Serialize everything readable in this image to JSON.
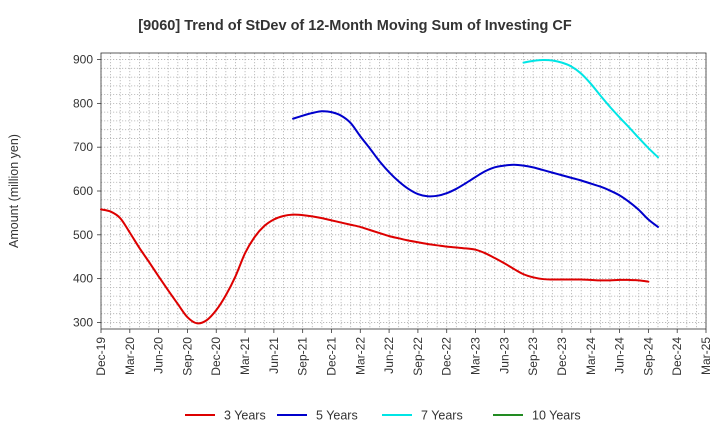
{
  "chart_data": {
    "type": "line",
    "title": "[9060]  Trend of StDev of 12-Month Moving Sum of Investing CF",
    "ylabel": "Amount (million yen)",
    "xlabel": "",
    "ylim": [
      285,
      915
    ],
    "yticks": [
      300,
      400,
      500,
      600,
      700,
      800,
      900
    ],
    "xrange": [
      "Dec-19",
      "Mar-25"
    ],
    "xtick_labels": [
      "Dec-19",
      "Mar-20",
      "Jun-20",
      "Sep-20",
      "Dec-20",
      "Mar-21",
      "Jun-21",
      "Sep-21",
      "Dec-21",
      "Mar-22",
      "Jun-22",
      "Sep-22",
      "Dec-22",
      "Mar-23",
      "Jun-23",
      "Sep-23",
      "Dec-23",
      "Mar-24",
      "Jun-24",
      "Sep-24",
      "Dec-24",
      "Mar-25"
    ],
    "grid": true,
    "legend_position": "bottom",
    "series": [
      {
        "name": "3 Years",
        "color": "#dd0000",
        "points": [
          [
            "Dec-19",
            558
          ],
          [
            "Jan-20",
            553
          ],
          [
            "Feb-20",
            538
          ],
          [
            "Mar-20",
            505
          ],
          [
            "Apr-20",
            470
          ],
          [
            "May-20",
            438
          ],
          [
            "Jun-20",
            405
          ],
          [
            "Jul-20",
            373
          ],
          [
            "Aug-20",
            342
          ],
          [
            "Sep-20",
            312
          ],
          [
            "Oct-20",
            298
          ],
          [
            "Nov-20",
            305
          ],
          [
            "Dec-20",
            328
          ],
          [
            "Jan-21",
            362
          ],
          [
            "Feb-21",
            405
          ],
          [
            "Mar-21",
            458
          ],
          [
            "Apr-21",
            495
          ],
          [
            "May-21",
            520
          ],
          [
            "Jun-21",
            535
          ],
          [
            "Jul-21",
            543
          ],
          [
            "Aug-21",
            546
          ],
          [
            "Sep-21",
            545
          ],
          [
            "Oct-21",
            542
          ],
          [
            "Nov-21",
            538
          ],
          [
            "Dec-21",
            533
          ],
          [
            "Jan-22",
            528
          ],
          [
            "Feb-22",
            523
          ],
          [
            "Mar-22",
            518
          ],
          [
            "Apr-22",
            511
          ],
          [
            "May-22",
            504
          ],
          [
            "Jun-22",
            497
          ],
          [
            "Jul-22",
            492
          ],
          [
            "Aug-22",
            487
          ],
          [
            "Sep-22",
            483
          ],
          [
            "Oct-22",
            479
          ],
          [
            "Nov-22",
            476
          ],
          [
            "Dec-22",
            473
          ],
          [
            "Jan-23",
            471
          ],
          [
            "Feb-23",
            469
          ],
          [
            "Mar-23",
            466
          ],
          [
            "Apr-23",
            458
          ],
          [
            "May-23",
            447
          ],
          [
            "Jun-23",
            435
          ],
          [
            "Jul-23",
            422
          ],
          [
            "Aug-23",
            410
          ],
          [
            "Sep-23",
            403
          ],
          [
            "Oct-23",
            399
          ],
          [
            "Nov-23",
            398
          ],
          [
            "Dec-23",
            398
          ],
          [
            "Jan-24",
            398
          ],
          [
            "Feb-24",
            398
          ],
          [
            "Mar-24",
            397
          ],
          [
            "Apr-24",
            396
          ],
          [
            "May-24",
            396
          ],
          [
            "Jun-24",
            397
          ],
          [
            "Jul-24",
            397
          ],
          [
            "Aug-24",
            396
          ],
          [
            "Sep-24",
            393
          ]
        ]
      },
      {
        "name": "5 Years",
        "color": "#0000cc",
        "points": [
          [
            "Aug-21",
            765
          ],
          [
            "Sep-21",
            772
          ],
          [
            "Oct-21",
            778
          ],
          [
            "Nov-21",
            782
          ],
          [
            "Dec-21",
            780
          ],
          [
            "Jan-22",
            772
          ],
          [
            "Feb-22",
            755
          ],
          [
            "Mar-22",
            725
          ],
          [
            "Apr-22",
            697
          ],
          [
            "May-22",
            668
          ],
          [
            "Jun-22",
            643
          ],
          [
            "Jul-22",
            622
          ],
          [
            "Aug-22",
            605
          ],
          [
            "Sep-22",
            593
          ],
          [
            "Oct-22",
            588
          ],
          [
            "Nov-22",
            589
          ],
          [
            "Dec-22",
            595
          ],
          [
            "Jan-23",
            605
          ],
          [
            "Feb-23",
            618
          ],
          [
            "Mar-23",
            632
          ],
          [
            "Apr-23",
            645
          ],
          [
            "May-23",
            654
          ],
          [
            "Jun-23",
            658
          ],
          [
            "Jul-23",
            660
          ],
          [
            "Aug-23",
            658
          ],
          [
            "Sep-23",
            654
          ],
          [
            "Oct-23",
            648
          ],
          [
            "Nov-23",
            642
          ],
          [
            "Dec-23",
            636
          ],
          [
            "Jan-24",
            630
          ],
          [
            "Feb-24",
            624
          ],
          [
            "Mar-24",
            617
          ],
          [
            "Apr-24",
            610
          ],
          [
            "May-24",
            601
          ],
          [
            "Jun-24",
            590
          ],
          [
            "Jul-24",
            575
          ],
          [
            "Aug-24",
            557
          ],
          [
            "Sep-24",
            535
          ],
          [
            "Oct-24",
            518
          ]
        ]
      },
      {
        "name": "7 Years",
        "color": "#00e5e5",
        "points": [
          [
            "Aug-23",
            893
          ],
          [
            "Sep-23",
            897
          ],
          [
            "Oct-23",
            899
          ],
          [
            "Nov-23",
            898
          ],
          [
            "Dec-23",
            893
          ],
          [
            "Jan-24",
            884
          ],
          [
            "Feb-24",
            868
          ],
          [
            "Mar-24",
            845
          ],
          [
            "Apr-24",
            818
          ],
          [
            "May-24",
            792
          ],
          [
            "Jun-24",
            768
          ],
          [
            "Jul-24",
            745
          ],
          [
            "Aug-24",
            721
          ],
          [
            "Sep-24",
            698
          ],
          [
            "Oct-24",
            677
          ]
        ]
      },
      {
        "name": "10 Years",
        "color": "#228b22",
        "points": []
      }
    ]
  }
}
